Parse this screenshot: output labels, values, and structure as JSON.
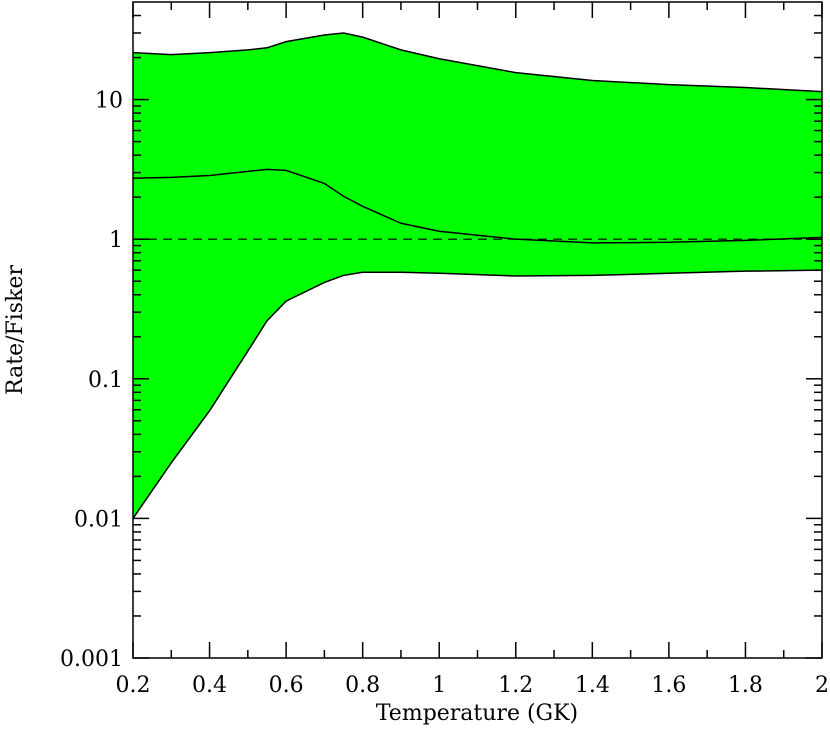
{
  "chart_data": {
    "type": "band",
    "xlabel": "Temperature (GK)",
    "ylabel": "Rate/Fisker",
    "x": [
      0.2,
      0.3,
      0.4,
      0.5,
      0.55,
      0.6,
      0.7,
      0.75,
      0.8,
      0.9,
      1.0,
      1.2,
      1.4,
      1.6,
      1.8,
      2.0
    ],
    "upper": [
      21.7,
      21,
      21.7,
      22.7,
      23.5,
      26,
      29,
      30,
      28,
      22.7,
      19.6,
      15.6,
      13.7,
      12.8,
      12.2,
      11.4
    ],
    "median": [
      2.73,
      2.77,
      2.86,
      3.06,
      3.16,
      3.11,
      2.51,
      2.03,
      1.72,
      1.3,
      1.14,
      1.0,
      0.94,
      0.95,
      0.98,
      1.03
    ],
    "lower": [
      0.01,
      0.025,
      0.059,
      0.158,
      0.26,
      0.36,
      0.49,
      0.55,
      0.58,
      0.58,
      0.57,
      0.545,
      0.55,
      0.57,
      0.59,
      0.6
    ],
    "fill_color": "#00ff00",
    "line_color": "#000000",
    "reference_line": 1,
    "xlim": [
      0.2,
      2
    ],
    "xticks": [
      0.2,
      0.4,
      0.6,
      0.8,
      1,
      1.2,
      1.4,
      1.6,
      1.8,
      2
    ],
    "x_minor_ticks": [
      0.3,
      0.5,
      0.7,
      0.9,
      1.1,
      1.3,
      1.5,
      1.7,
      1.9
    ],
    "ylim": [
      0.001,
      50
    ],
    "yscale": "log",
    "yticks": [
      0.001,
      0.01,
      0.1,
      1,
      10
    ],
    "y_minor_ticks": [
      0.002,
      0.003,
      0.004,
      0.005,
      0.006,
      0.007,
      0.008,
      0.009,
      0.02,
      0.03,
      0.04,
      0.05,
      0.06,
      0.07,
      0.08,
      0.09,
      0.2,
      0.3,
      0.4,
      0.5,
      0.6,
      0.7,
      0.8,
      0.9,
      2,
      3,
      4,
      5,
      6,
      7,
      8,
      9,
      20,
      30,
      40
    ]
  }
}
